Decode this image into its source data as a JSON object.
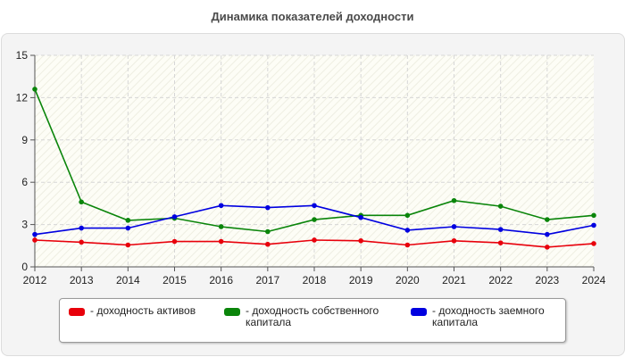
{
  "chart_data": {
    "type": "line",
    "title": "Динамика показателей доходности",
    "xlabel": "",
    "ylabel": "",
    "x": [
      "2012",
      "2013",
      "2014",
      "2015",
      "2016",
      "2017",
      "2018",
      "2019",
      "2020",
      "2021",
      "2022",
      "2023",
      "2024"
    ],
    "ylim": [
      0,
      15
    ],
    "yticks": [
      "0",
      "3",
      "6",
      "9",
      "12",
      "15"
    ],
    "grid": true,
    "legend_position": "bottom",
    "series": [
      {
        "name": "- доходность активов",
        "color": "#e8000b",
        "values": [
          1.9,
          1.75,
          1.55,
          1.8,
          1.8,
          1.6,
          1.9,
          1.85,
          1.55,
          1.85,
          1.7,
          1.4,
          1.65
        ]
      },
      {
        "name": "- доходность собственного капитала",
        "color": "#0a850a",
        "values": [
          12.6,
          4.6,
          3.3,
          3.45,
          2.85,
          2.5,
          3.35,
          3.65,
          3.65,
          4.7,
          4.3,
          3.35,
          3.65
        ]
      },
      {
        "name": "- доходность заемного капитала",
        "color": "#0000e0",
        "values": [
          2.3,
          2.75,
          2.75,
          3.55,
          4.35,
          4.2,
          4.35,
          3.5,
          2.6,
          2.85,
          2.65,
          2.3,
          2.95
        ]
      }
    ]
  }
}
